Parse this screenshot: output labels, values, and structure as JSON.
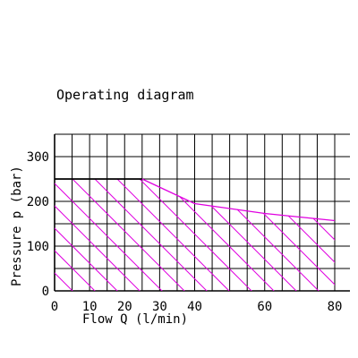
{
  "chart_data": {
    "type": "area",
    "title": "Operating diagram",
    "xlabel": "Flow Q (l/min)",
    "ylabel": "Pressure p (bar)",
    "xlim": [
      0,
      80
    ],
    "ylim": [
      0,
      350
    ],
    "x_ticks": [
      "0",
      "10",
      "20",
      "30",
      "40",
      "60",
      "80"
    ],
    "y_ticks": [
      "0",
      "100",
      "200",
      "300"
    ],
    "grid": true,
    "boundary": {
      "x": [
        0,
        25,
        40,
        60,
        80
      ],
      "y": [
        250,
        250,
        195,
        173,
        157
      ]
    },
    "region_fill": "hatched",
    "colors": {
      "grid": "#000000",
      "operating_region": "#e000e0"
    }
  }
}
